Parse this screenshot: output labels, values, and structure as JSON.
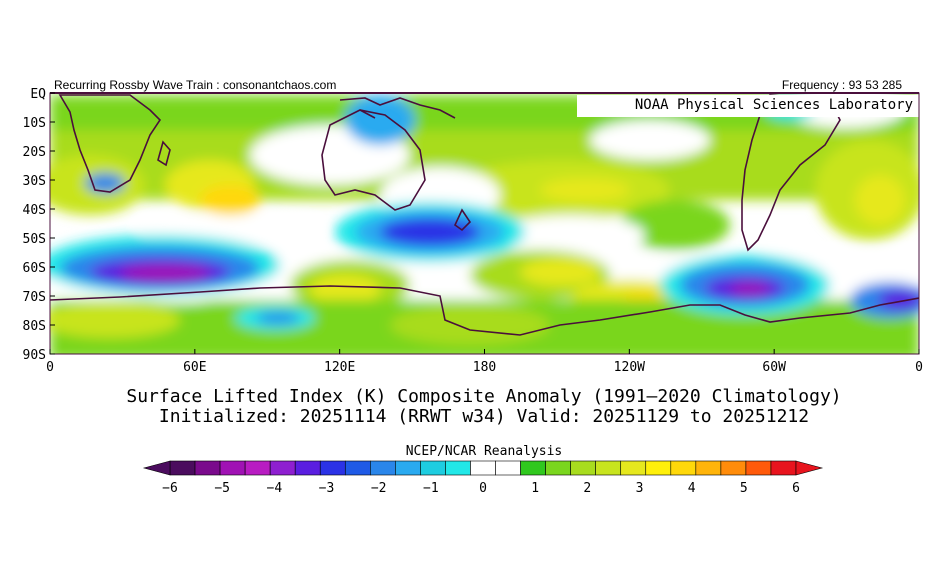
{
  "header": {
    "left": "Recurring Rossby Wave Train : consonantchaos.com",
    "right": "Frequency : 93 53 285"
  },
  "watermark": "NOAA Physical Sciences Laboratory",
  "axes": {
    "y_labels": [
      "EQ",
      "10S",
      "20S",
      "30S",
      "40S",
      "50S",
      "60S",
      "70S",
      "80S",
      "90S"
    ],
    "x_labels": [
      "0",
      "60E",
      "120E",
      "180",
      "120W",
      "60W",
      "0"
    ]
  },
  "title_line1": "Surface Lifted Index (K) Composite Anomaly (1991–2020 Climatology)",
  "title_line2": "Initialized: 20251114 (RRWT w34) Valid: 20251129 to 20251212",
  "colorbar": {
    "label": "NCEP/NCAR Reanalysis",
    "tick_labels": [
      "−6",
      "−5",
      "−4",
      "−3",
      "−2",
      "−1",
      "0",
      "1",
      "2",
      "3",
      "4",
      "5",
      "6"
    ],
    "colors": [
      "#4b0c5e",
      "#7a0a8c",
      "#a012b4",
      "#b81cc2",
      "#8e1fd0",
      "#5a1ee0",
      "#2b32e6",
      "#1f5ae6",
      "#2a86ea",
      "#2aaaf0",
      "#1ecde0",
      "#22e8e8",
      "#ffffff",
      "#ffffff",
      "#30c81e",
      "#7ad61e",
      "#a8dc1e",
      "#c8e41e",
      "#e6e81e",
      "#fff00a",
      "#ffd80a",
      "#ffb40a",
      "#ff8c0a",
      "#ff5a0a",
      "#e8141e"
    ]
  },
  "colors": {
    "land_outline": "#4a0f3c",
    "frame": "#4a0f3c"
  }
}
